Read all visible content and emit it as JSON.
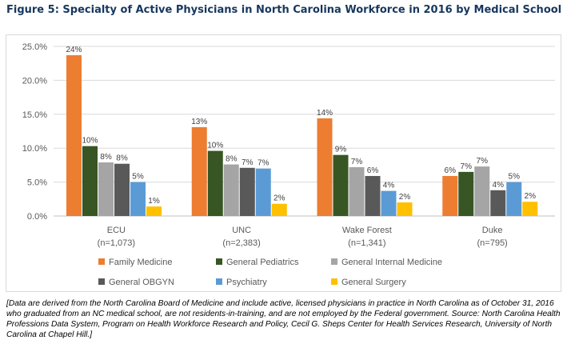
{
  "figure": {
    "title": "Figure 5: Specialty of Active Physicians in North Carolina Workforce in 2016 by Medical School",
    "footnote": "[Data are derived from the North Carolina Board of Medicine and include active, licensed physicians in practice in North Carolina as of October 31, 2016 who graduated from an NC medical school, are not residents-in-training, and are not employed by the Federal government. Source: North Carolina Health Professions Data System, Program on Health Workforce Research and Policy, Cecil G. Sheps Center for Health Services Research, University of North Carolina at Chapel Hill.]"
  },
  "chart_data": {
    "type": "bar",
    "categories": [
      "ECU",
      "UNC",
      "Wake Forest",
      "Duke"
    ],
    "category_sublabels": [
      "(n=1,073)",
      "(n=2,383)",
      "(n=1,341)",
      "(n=795)"
    ],
    "y_ticks": [
      "0.0%",
      "5.0%",
      "10.0%",
      "15.0%",
      "20.0%",
      "25.0%"
    ],
    "ylim": [
      0,
      25
    ],
    "grid": true,
    "legend_position": "bottom",
    "series": [
      {
        "name": "Family Medicine",
        "color": "#ed7d31",
        "values": [
          23.7,
          13.1,
          14.4,
          5.9
        ],
        "labels": [
          "24%",
          "13%",
          "14%",
          "6%"
        ]
      },
      {
        "name": "General Pediatrics",
        "color": "#375623",
        "values": [
          10.3,
          9.6,
          9.0,
          6.5
        ],
        "labels": [
          "10%",
          "10%",
          "9%",
          "7%"
        ]
      },
      {
        "name": "General Internal Medicine",
        "color": "#a5a5a5",
        "values": [
          7.9,
          7.6,
          7.2,
          7.3
        ],
        "labels": [
          "8%",
          "8%",
          "7%",
          "7%"
        ]
      },
      {
        "name": "General OBGYN",
        "color": "#595959",
        "values": [
          7.7,
          7.1,
          5.9,
          3.8
        ],
        "labels": [
          "8%",
          "7%",
          "6%",
          "4%"
        ]
      },
      {
        "name": "Psychiatry",
        "color": "#5b9bd5",
        "values": [
          5.0,
          7.0,
          3.7,
          5.0
        ],
        "labels": [
          "5%",
          "7%",
          "4%",
          "5%"
        ]
      },
      {
        "name": "General Surgery",
        "color": "#ffc000",
        "values": [
          1.4,
          1.8,
          2.0,
          2.1
        ],
        "labels": [
          "1%",
          "2%",
          "2%",
          "2%"
        ]
      }
    ]
  }
}
